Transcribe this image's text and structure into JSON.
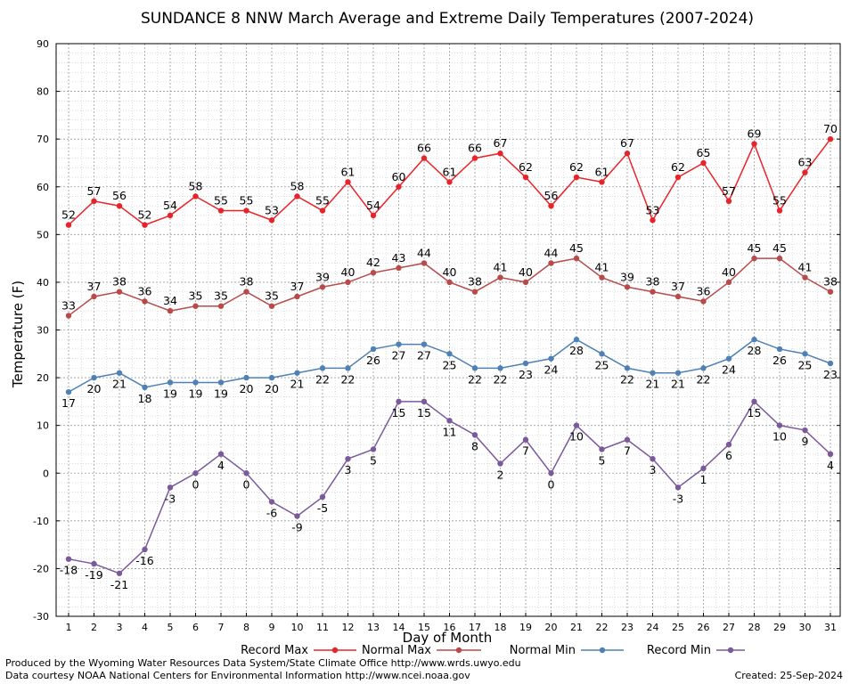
{
  "chart_data": {
    "type": "line",
    "title": "SUNDANCE 8 NNW March Average and Extreme Daily Temperatures (2007-2024)",
    "xlabel": "Day of Month",
    "ylabel": "Temperature (F)",
    "ylim": [
      -30,
      90
    ],
    "yticks": [
      "90",
      "80",
      "70",
      "60",
      "50",
      "40",
      "30",
      "20",
      "10",
      "0",
      "-10",
      "-20",
      "-30"
    ],
    "x": [
      "1",
      "2",
      "3",
      "4",
      "5",
      "6",
      "7",
      "8",
      "9",
      "10",
      "11",
      "12",
      "13",
      "14",
      "15",
      "16",
      "17",
      "18",
      "19",
      "20",
      "21",
      "22",
      "23",
      "24",
      "25",
      "26",
      "27",
      "28",
      "29",
      "30",
      "31"
    ],
    "grid": true,
    "series": [
      {
        "name": "Record Max",
        "color": "#e8242b",
        "label_pos": "above",
        "values": [
          52,
          57,
          56,
          52,
          54,
          58,
          55,
          55,
          53,
          58,
          55,
          61,
          54,
          60,
          66,
          61,
          66,
          67,
          62,
          56,
          62,
          61,
          67,
          53,
          62,
          65,
          57,
          69,
          55,
          63,
          70
        ]
      },
      {
        "name": "Normal Max",
        "color": "#b94a4a",
        "label_pos": "above",
        "values": [
          33,
          37,
          38,
          36,
          34,
          35,
          35,
          38,
          35,
          37,
          39,
          40,
          42,
          43,
          44,
          40,
          38,
          41,
          40,
          44,
          45,
          41,
          39,
          38,
          37,
          36,
          40,
          45,
          45,
          41,
          38
        ]
      },
      {
        "name": "Normal Min",
        "color": "#4f81b4",
        "label_pos": "below",
        "values": [
          17,
          20,
          21,
          18,
          19,
          19,
          19,
          20,
          20,
          21,
          22,
          22,
          26,
          27,
          27,
          25,
          22,
          22,
          23,
          24,
          28,
          25,
          22,
          21,
          21,
          22,
          24,
          28,
          26,
          25,
          23
        ]
      },
      {
        "name": "Record Min",
        "color": "#7a5a9a",
        "label_pos": "below",
        "values": [
          -18,
          -19,
          -21,
          -16,
          -3,
          0,
          4,
          0,
          -6,
          -9,
          -5,
          3,
          5,
          15,
          15,
          11,
          8,
          2,
          7,
          0,
          10,
          5,
          7,
          3,
          -3,
          1,
          6,
          15,
          10,
          9,
          4
        ]
      }
    ]
  },
  "footer": {
    "left_line1": "Produced by the Wyoming Water Resources Data System/State Climate Office http://www.wrds.uwyo.edu",
    "left_line2": "Data courtesy NOAA National Centers for Environmental Information http://www.ncei.noaa.gov",
    "created": "Created:  25-Sep-2024"
  }
}
